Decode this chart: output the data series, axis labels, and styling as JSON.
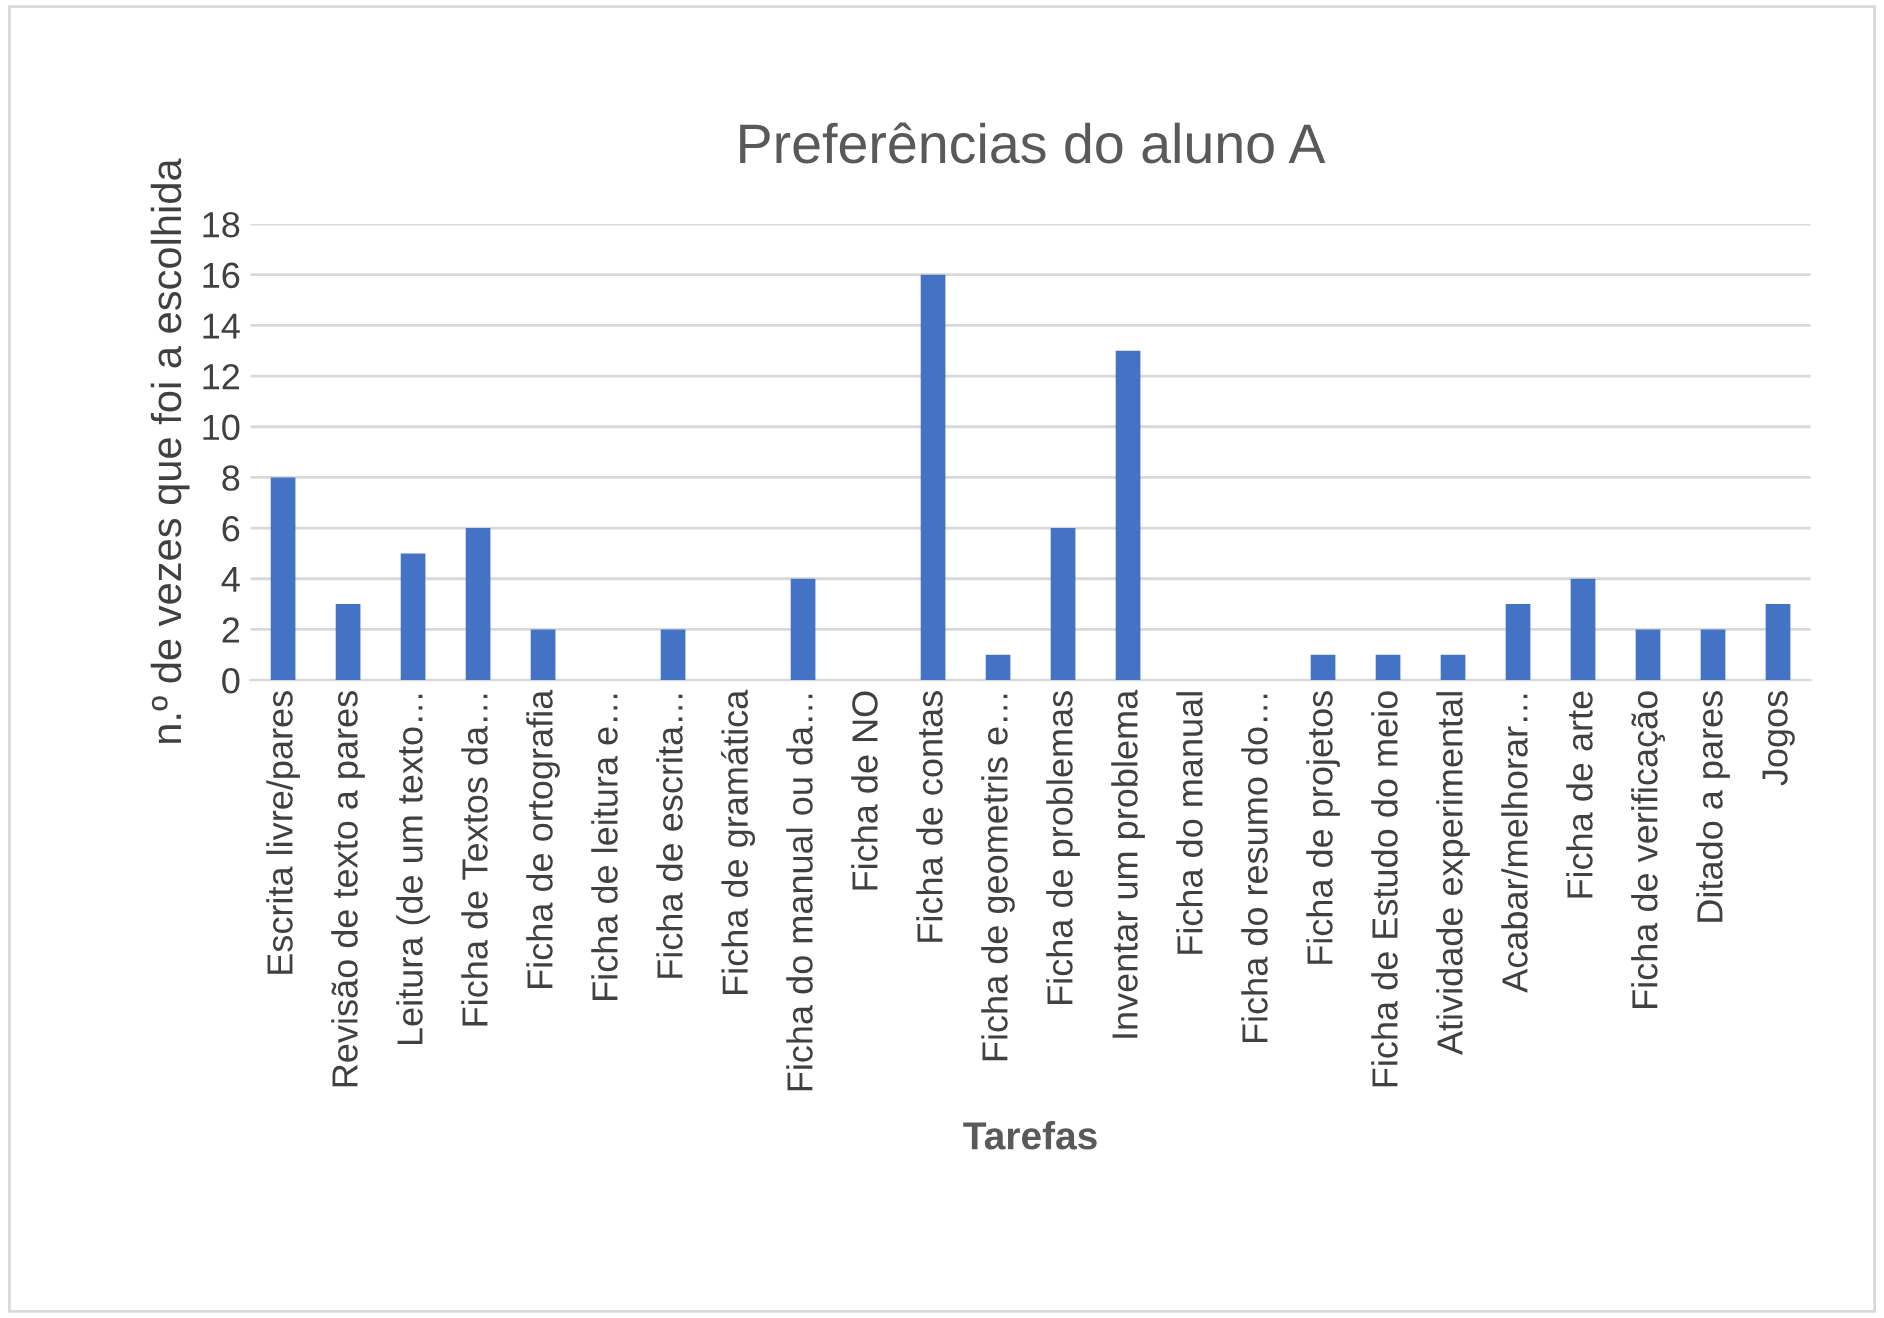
{
  "chart_data": {
    "type": "bar",
    "title": "Preferências do aluno A",
    "xlabel": "Tarefas",
    "ylabel": "n.º de vezes que foi a escolhida",
    "categories": [
      "Escrita livre/pares",
      "Revisão de texto a pares",
      "Leitura (de um texto…",
      "Ficha de Textos da…",
      "Ficha de ortografia",
      "Ficha de leitura e…",
      "Ficha de escrita…",
      "Ficha de gramática",
      "Ficha do manual ou da…",
      "Ficha de NO",
      "Ficha de contas",
      "Ficha de geometris e…",
      "Ficha de problemas",
      "Inventar um problema",
      "Ficha do manual",
      "Ficha do resumo do…",
      "Ficha de projetos",
      "Ficha de Estudo do meio",
      "Atividade experimental",
      "Acabar/melhorar…",
      "Ficha de arte",
      "Ficha de verificação",
      "Ditado a pares",
      "Jogos"
    ],
    "values": [
      8,
      3,
      5,
      6,
      2,
      0,
      2,
      0,
      4,
      0,
      16,
      1,
      6,
      13,
      0,
      0,
      1,
      1,
      1,
      3,
      4,
      2,
      2,
      3
    ],
    "color": "#4472c4",
    "ylim": [
      0,
      18
    ],
    "yticks": [
      0,
      2,
      4,
      6,
      8,
      10,
      12,
      14,
      16,
      18
    ],
    "grid": "y",
    "legend": false
  }
}
